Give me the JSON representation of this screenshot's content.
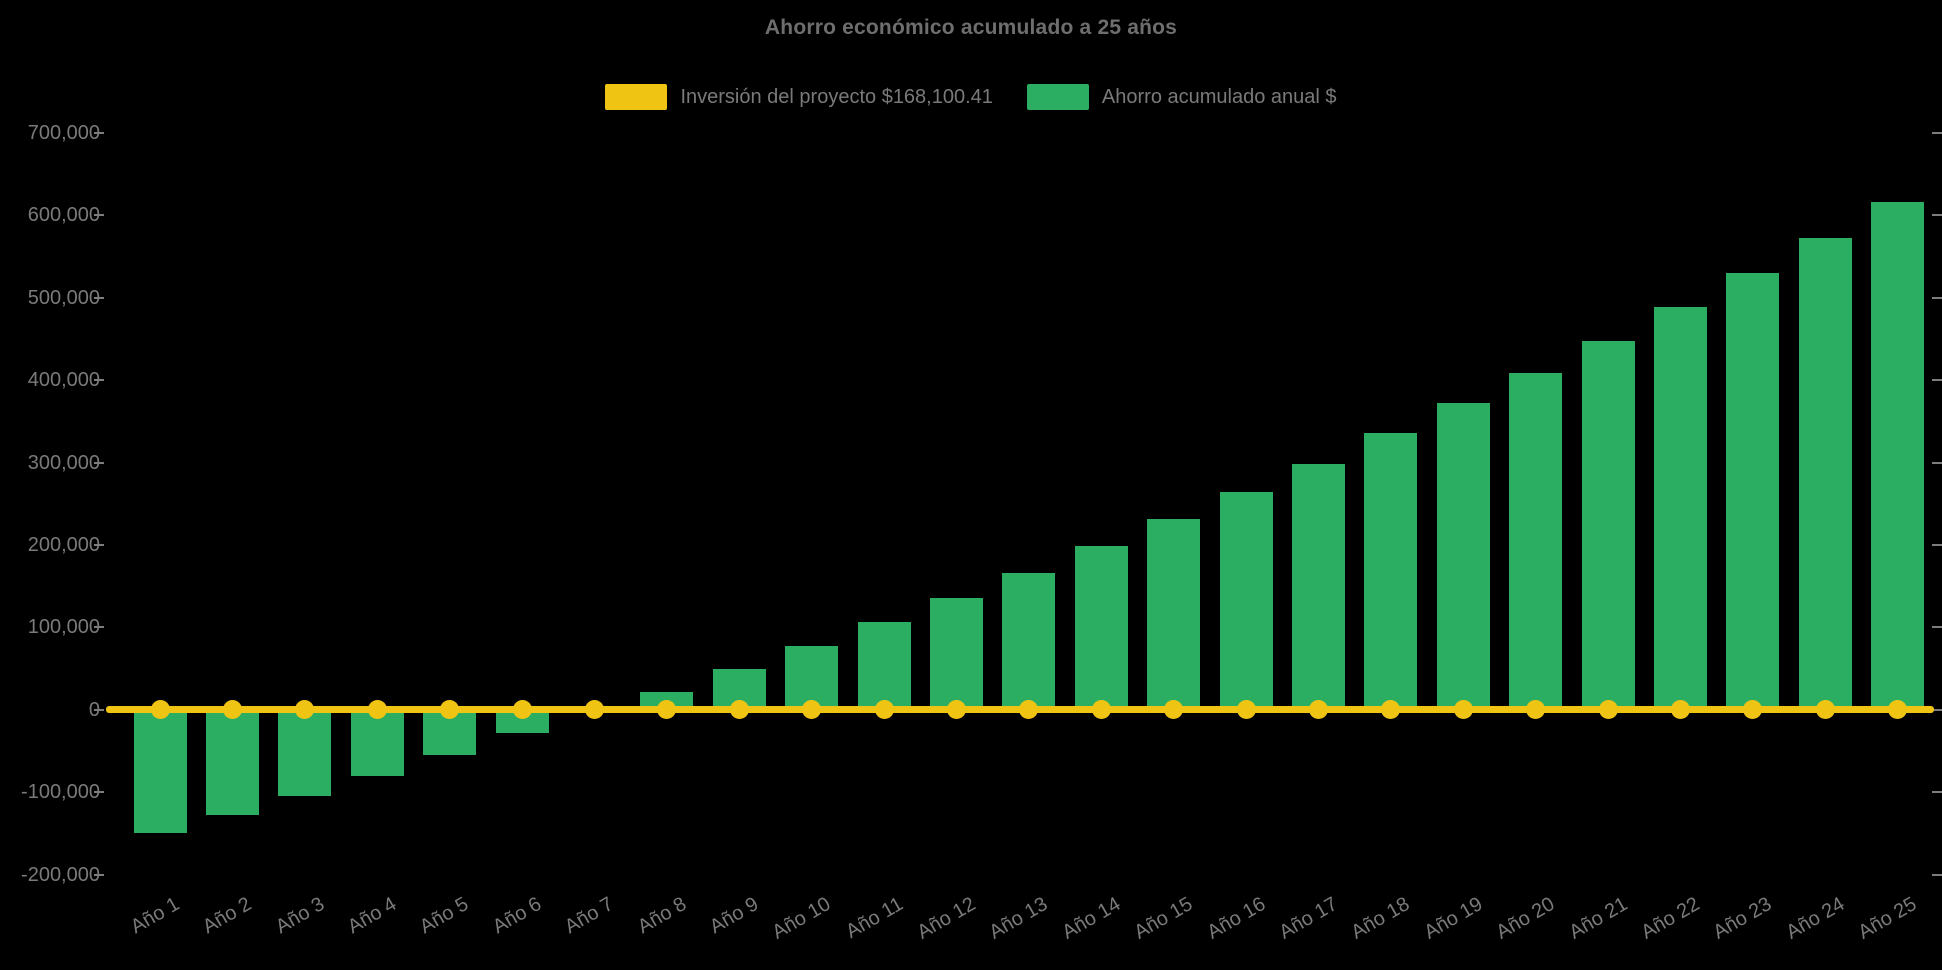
{
  "title": "Ahorro económico acumulado a 25 años",
  "legend": [
    {
      "label": "Inversión del proyecto $168,100.41",
      "series_key": "investment_line"
    },
    {
      "label": "Ahorro acumulado anual $",
      "series_key": "accumulated_savings"
    }
  ],
  "colors": {
    "bar_green": "#2BAD62",
    "line_yellow": "#F0C413",
    "text_gray": "#7A7A7A",
    "title_gray": "#6E6E6E",
    "tick_mark_gray": "#7D7D7D",
    "background": "#000000"
  },
  "chart_data": {
    "type": "bar",
    "title": "Ahorro económico acumulado a 25 años",
    "categories": [
      "Año 1",
      "Año 2",
      "Año 3",
      "Año 4",
      "Año 5",
      "Año 6",
      "Año 7",
      "Año 8",
      "Año 9",
      "Año 10",
      "Año 11",
      "Año 12",
      "Año 13",
      "Año 14",
      "Año 15",
      "Año 16",
      "Año 17",
      "Año 18",
      "Año 19",
      "Año 20",
      "Año 21",
      "Año 22",
      "Año 23",
      "Año 24",
      "Año 25"
    ],
    "series": [
      {
        "name": "Inversión del proyecto $168,100.41",
        "type": "line",
        "color": "#F0C413",
        "marker": "circle",
        "values": [
          0,
          0,
          0,
          0,
          0,
          0,
          0,
          0,
          0,
          0,
          0,
          0,
          0,
          0,
          0,
          0,
          0,
          0,
          0,
          0,
          0,
          0,
          0,
          0,
          0
        ]
      },
      {
        "name": "Ahorro acumulado anual $",
        "type": "bar",
        "color": "#2BAD62",
        "values": [
          -149000,
          -127500,
          -104500,
          -80000,
          -55000,
          -28500,
          -500,
          22000,
          49500,
          77500,
          107000,
          136000,
          166500,
          199000,
          232000,
          264500,
          298500,
          336000,
          372500,
          409000,
          448000,
          489000,
          530500,
          573000,
          616500
        ]
      }
    ],
    "xlabel": "",
    "ylabel": "",
    "ylim": [
      -200000,
      700000
    ],
    "ytick_interval": 100000,
    "y_tick_labels": [
      "700,000",
      "600,000",
      "500,000",
      "400,000",
      "300,000",
      "200,000",
      "100,000",
      "0",
      "-100,000",
      "-200,000"
    ],
    "y_tick_values": [
      700000,
      600000,
      500000,
      400000,
      300000,
      200000,
      100000,
      0,
      -100000,
      -200000
    ],
    "grid": false,
    "legend_position": "top",
    "x_tick_rotation_deg": -30
  }
}
